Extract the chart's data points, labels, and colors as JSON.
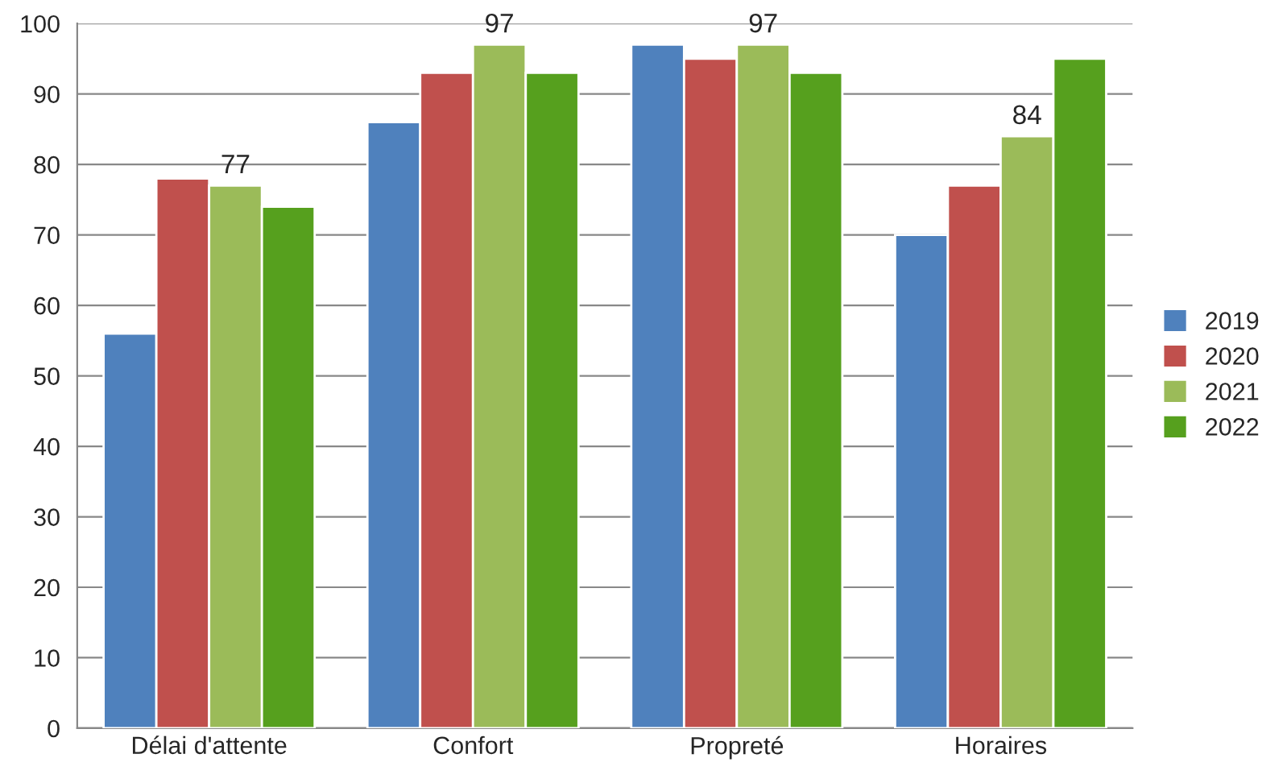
{
  "chart_data": {
    "type": "bar",
    "categories": [
      "Délai d'attente",
      "Confort",
      "Propreté",
      "Horaires"
    ],
    "series": [
      {
        "name": "2019",
        "color": "#4f81bd",
        "values": [
          56,
          86,
          97,
          70
        ]
      },
      {
        "name": "2020",
        "color": "#c0504d",
        "values": [
          78,
          93,
          95,
          77
        ]
      },
      {
        "name": "2021",
        "color": "#9bbb59",
        "values": [
          77,
          97,
          97,
          84
        ],
        "value_labels": [
          "77",
          "97",
          "97",
          "84"
        ]
      },
      {
        "name": "2022",
        "color": "#56a01e",
        "values": [
          74,
          93,
          93,
          95
        ]
      }
    ],
    "ylim": [
      0,
      100
    ],
    "yticks": [
      0,
      10,
      20,
      30,
      40,
      50,
      60,
      70,
      80,
      90,
      100
    ],
    "grid": "y",
    "legend": "right"
  }
}
